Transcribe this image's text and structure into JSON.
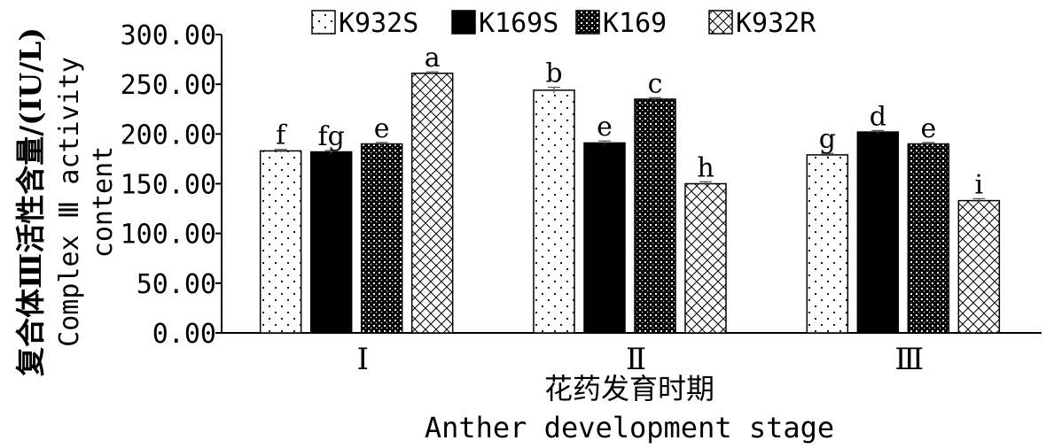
{
  "chart_data": {
    "type": "bar",
    "categories": [
      "Ⅰ",
      "Ⅱ",
      "Ⅲ"
    ],
    "series": [
      {
        "name": "K932S",
        "pattern": "dots",
        "values": [
          183,
          244,
          179
        ],
        "errors": [
          1.5,
          3,
          1.5
        ],
        "letters": [
          "f",
          "b",
          "g"
        ]
      },
      {
        "name": "K169S",
        "pattern": "solid",
        "values": [
          182,
          191,
          202
        ],
        "errors": [
          1.5,
          2,
          1.5
        ],
        "letters": [
          "fg",
          "e",
          "d"
        ]
      },
      {
        "name": "K169",
        "pattern": "dense",
        "values": [
          190,
          235,
          190
        ],
        "errors": [
          1.5,
          1.5,
          1.5
        ],
        "letters": [
          "e",
          "c",
          "e"
        ]
      },
      {
        "name": "K932R",
        "pattern": "crosshatch",
        "values": [
          261,
          150,
          133
        ],
        "errors": [
          1.5,
          2,
          2
        ],
        "letters": [
          "a",
          "h",
          "i"
        ]
      }
    ],
    "ylim": [
      0,
      300
    ],
    "yticks": [
      "0.00",
      "50.00",
      "100.00",
      "150.00",
      "200.00",
      "250.00",
      "300.00"
    ],
    "ylabel_cn": "复合体Ⅲ活性含量/(IU/L)",
    "ylabel_en_1": "Complex Ⅲ activity",
    "ylabel_en_2": "content",
    "xlabel_cn": "花药发育时期",
    "xlabel_en": "Anther development stage",
    "legend_position": "top",
    "grid": false
  },
  "colors": {
    "axis": "#000000",
    "bar_fill": "#ffffff",
    "ink": "#000000"
  }
}
